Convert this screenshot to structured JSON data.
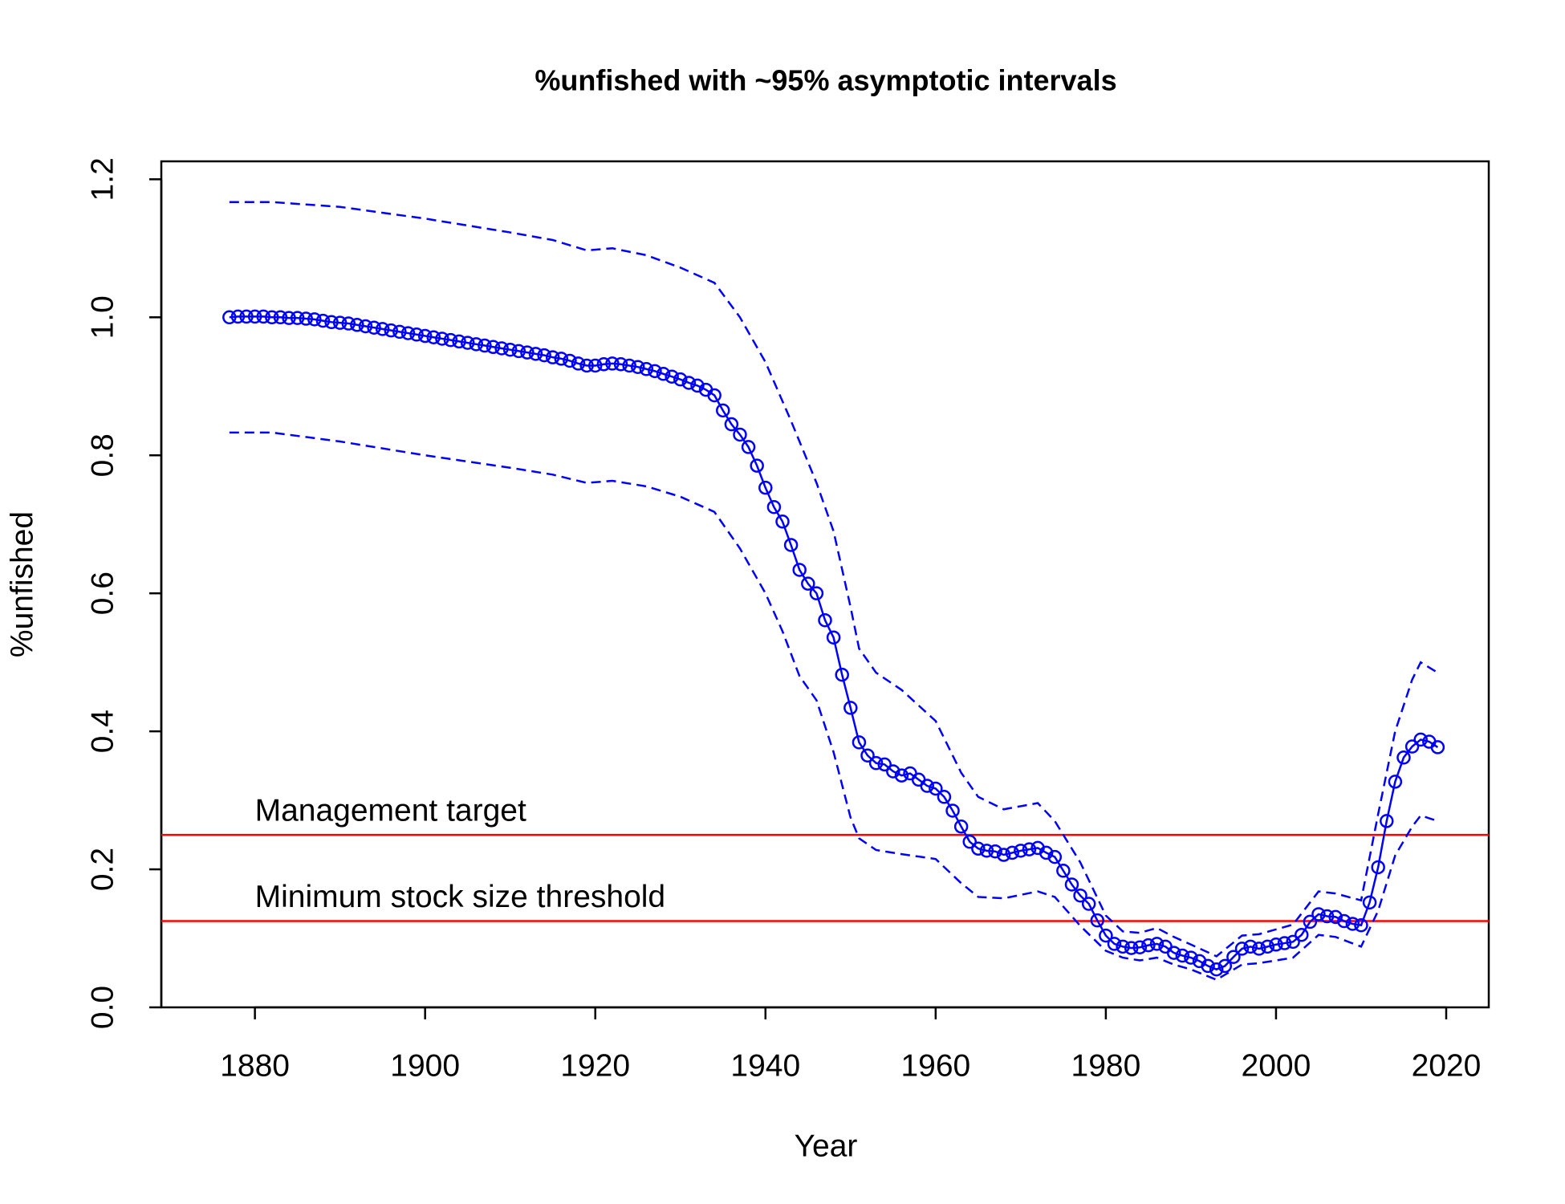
{
  "chart_data": {
    "type": "line",
    "title": "%unfished with ~95% asymptotic intervals",
    "x_label": "Year",
    "y_label": "%unfished",
    "x": [
      1877,
      1878,
      1879,
      1880,
      1881,
      1882,
      1883,
      1884,
      1885,
      1886,
      1887,
      1888,
      1889,
      1890,
      1891,
      1892,
      1893,
      1894,
      1895,
      1896,
      1897,
      1898,
      1899,
      1900,
      1901,
      1902,
      1903,
      1904,
      1905,
      1906,
      1907,
      1908,
      1909,
      1910,
      1911,
      1912,
      1913,
      1914,
      1915,
      1916,
      1917,
      1918,
      1919,
      1920,
      1921,
      1922,
      1923,
      1924,
      1925,
      1926,
      1927,
      1928,
      1929,
      1930,
      1931,
      1932,
      1933,
      1934,
      1935,
      1936,
      1937,
      1938,
      1939,
      1940,
      1941,
      1942,
      1943,
      1944,
      1945,
      1946,
      1947,
      1948,
      1949,
      1950,
      1951,
      1952,
      1953,
      1954,
      1955,
      1956,
      1957,
      1958,
      1959,
      1960,
      1961,
      1962,
      1963,
      1964,
      1965,
      1966,
      1967,
      1968,
      1969,
      1970,
      1971,
      1972,
      1973,
      1974,
      1975,
      1976,
      1977,
      1978,
      1979,
      1980,
      1981,
      1982,
      1983,
      1984,
      1985,
      1986,
      1987,
      1988,
      1989,
      1990,
      1991,
      1992,
      1993,
      1994,
      1995,
      1996,
      1997,
      1998,
      1999,
      2000,
      2001,
      2002,
      2003,
      2004,
      2005,
      2006,
      2007,
      2008,
      2009,
      2010,
      2011,
      2012,
      2013,
      2014,
      2015,
      2016,
      2017,
      2018,
      2019
    ],
    "series": [
      {
        "color": "#0000ff",
        "values": [
          1.0,
          1.001,
          1.001,
          1.001,
          1.001,
          1.0,
          1.0,
          0.999,
          0.999,
          0.998,
          0.997,
          0.995,
          0.993,
          0.992,
          0.991,
          0.989,
          0.987,
          0.985,
          0.983,
          0.981,
          0.979,
          0.977,
          0.975,
          0.973,
          0.971,
          0.969,
          0.967,
          0.965,
          0.963,
          0.961,
          0.959,
          0.957,
          0.955,
          0.953,
          0.951,
          0.949,
          0.947,
          0.945,
          0.942,
          0.94,
          0.937,
          0.933,
          0.93,
          0.93,
          0.932,
          0.933,
          0.932,
          0.93,
          0.928,
          0.925,
          0.922,
          0.918,
          0.914,
          0.91,
          0.905,
          0.901,
          0.895,
          0.887,
          0.865,
          0.845,
          0.83,
          0.812,
          0.785,
          0.753,
          0.725,
          0.704,
          0.67,
          0.634,
          0.614,
          0.6,
          0.561,
          0.536,
          0.482,
          0.434,
          0.384,
          0.365,
          0.354,
          0.352,
          0.342,
          0.336,
          0.339,
          0.33,
          0.321,
          0.317,
          0.305,
          0.285,
          0.262,
          0.24,
          0.23,
          0.227,
          0.226,
          0.221,
          0.224,
          0.227,
          0.229,
          0.231,
          0.224,
          0.218,
          0.198,
          0.178,
          0.162,
          0.15,
          0.126,
          0.104,
          0.092,
          0.088,
          0.086,
          0.087,
          0.09,
          0.092,
          0.088,
          0.079,
          0.075,
          0.072,
          0.067,
          0.06,
          0.055,
          0.06,
          0.073,
          0.085,
          0.088,
          0.085,
          0.088,
          0.091,
          0.093,
          0.095,
          0.105,
          0.124,
          0.135,
          0.132,
          0.131,
          0.125,
          0.121,
          0.119,
          0.152,
          0.203,
          0.27,
          0.327,
          0.362,
          0.378,
          0.388,
          0.385,
          0.377
        ]
      },
      {
        "color": "#0000ff",
        "dashed": true,
        "x": [
          1877,
          1882,
          1890,
          1900,
          1910,
          1915,
          1919,
          1922,
          1926,
          1930,
          1934,
          1937,
          1940,
          1943,
          1946,
          1948,
          1950,
          1951,
          1953,
          1956,
          1960,
          1963,
          1965,
          1968,
          1972,
          1974,
          1977,
          1980,
          1982,
          1984,
          1986,
          1988,
          1990,
          1993,
          1996,
          1998,
          2002,
          2005,
          2007,
          2010,
          2012,
          2014,
          2016,
          2017,
          2019
        ],
        "values": [
          1.167,
          1.167,
          1.16,
          1.143,
          1.123,
          1.112,
          1.097,
          1.1,
          1.09,
          1.072,
          1.05,
          1.0,
          0.935,
          0.85,
          0.76,
          0.69,
          0.58,
          0.52,
          0.485,
          0.46,
          0.415,
          0.34,
          0.305,
          0.287,
          0.296,
          0.27,
          0.21,
          0.133,
          0.11,
          0.108,
          0.115,
          0.102,
          0.091,
          0.074,
          0.104,
          0.106,
          0.12,
          0.168,
          0.165,
          0.155,
          0.28,
          0.4,
          0.475,
          0.5,
          0.485
        ]
      },
      {
        "color": "#0000ff",
        "dashed": true,
        "x": [
          1877,
          1882,
          1890,
          1900,
          1910,
          1915,
          1919,
          1922,
          1926,
          1930,
          1934,
          1937,
          1940,
          1942,
          1944,
          1946,
          1948,
          1950,
          1951,
          1953,
          1956,
          1960,
          1963,
          1965,
          1968,
          1972,
          1974,
          1977,
          1980,
          1982,
          1984,
          1986,
          1988,
          1990,
          1993,
          1996,
          1998,
          2002,
          2005,
          2007,
          2010,
          2012,
          2014,
          2016,
          2017,
          2019
        ],
        "values": [
          0.833,
          0.833,
          0.82,
          0.8,
          0.782,
          0.772,
          0.76,
          0.763,
          0.755,
          0.74,
          0.718,
          0.665,
          0.6,
          0.545,
          0.48,
          0.445,
          0.37,
          0.275,
          0.245,
          0.228,
          0.222,
          0.215,
          0.18,
          0.16,
          0.158,
          0.168,
          0.16,
          0.118,
          0.082,
          0.072,
          0.068,
          0.072,
          0.062,
          0.055,
          0.04,
          0.062,
          0.064,
          0.072,
          0.105,
          0.102,
          0.088,
          0.14,
          0.22,
          0.262,
          0.278,
          0.27
        ]
      }
    ],
    "hlines": [
      {
        "value": 0.25,
        "label": "Management target",
        "color": "#ff0000"
      },
      {
        "value": 0.125,
        "label": "Minimum stock size threshold",
        "color": "#ff0000"
      }
    ],
    "xlim": [
      1869,
      2025
    ],
    "xticks": [
      1880,
      1900,
      1920,
      1940,
      1960,
      1980,
      2000,
      2020
    ],
    "ylim": [
      0,
      1.226
    ],
    "yticks": [
      {
        "value": 0,
        "label": "0.0"
      },
      0.2,
      0.4,
      0.6,
      0.8,
      {
        "value": 1,
        "label": "1.0"
      },
      1.2
    ]
  }
}
